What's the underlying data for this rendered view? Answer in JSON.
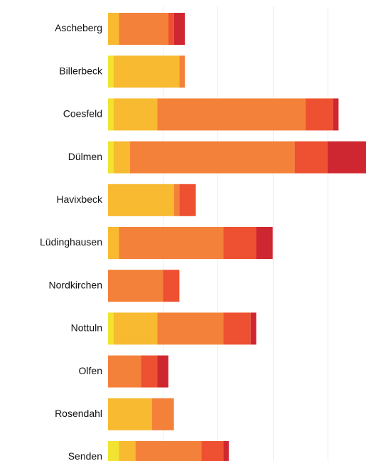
{
  "chart_data": {
    "type": "bar",
    "orientation": "horizontal",
    "stacked": true,
    "categories": [
      "Ascheberg",
      "Billerbeck",
      "Coesfeld",
      "Dülmen",
      "Havixbeck",
      "Lüdinghausen",
      "Nordkirchen",
      "Nottuln",
      "Olfen",
      "Rosendahl",
      "Senden"
    ],
    "series": [
      {
        "color": "#f0e332",
        "values": [
          0,
          1,
          1,
          1,
          0,
          0,
          0,
          1,
          0,
          0,
          2
        ]
      },
      {
        "color": "#f7ba30",
        "values": [
          2,
          12,
          8,
          3,
          12,
          2,
          0,
          8,
          0,
          8,
          3
        ]
      },
      {
        "color": "#f4813a",
        "values": [
          9,
          1,
          27,
          30,
          1,
          19,
          10,
          12,
          6,
          4,
          12
        ]
      },
      {
        "color": "#ee5131",
        "values": [
          1,
          0,
          5,
          6,
          3,
          6,
          3,
          5,
          3,
          0,
          4
        ]
      },
      {
        "color": "#cf2731",
        "values": [
          2,
          0,
          1,
          7,
          0,
          3,
          0,
          1,
          2,
          0,
          1
        ]
      }
    ],
    "xlim": [
      0,
      47
    ],
    "grid": true,
    "legend": "none",
    "title": "",
    "xlabel": "",
    "ylabel": ""
  }
}
